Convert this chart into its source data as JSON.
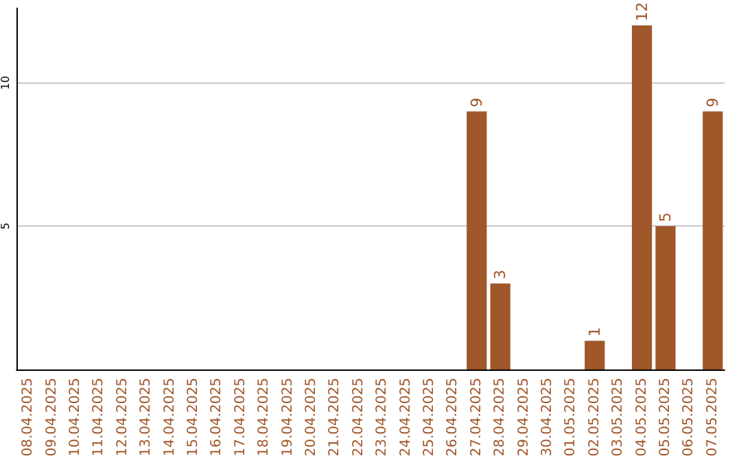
{
  "chart_data": {
    "type": "bar",
    "categories": [
      "08.04.2025",
      "09.04.2025",
      "10.04.2025",
      "11.04.2025",
      "12.04.2025",
      "13.04.2025",
      "14.04.2025",
      "15.04.2025",
      "16.04.2025",
      "17.04.2025",
      "18.04.2025",
      "19.04.2025",
      "20.04.2025",
      "21.04.2025",
      "22.04.2025",
      "23.04.2025",
      "24.04.2025",
      "25.04.2025",
      "26.04.2025",
      "27.04.2025",
      "28.04.2025",
      "29.04.2025",
      "30.04.2025",
      "01.05.2025",
      "02.05.2025",
      "03.05.2025",
      "04.05.2025",
      "05.05.2025",
      "06.05.2025",
      "07.05.2025"
    ],
    "values": [
      0,
      0,
      0,
      0,
      0,
      0,
      0,
      0,
      0,
      0,
      0,
      0,
      0,
      0,
      0,
      0,
      0,
      0,
      0,
      9,
      3,
      0,
      0,
      0,
      1,
      0,
      12,
      5,
      0,
      9
    ],
    "value_labels": [
      null,
      null,
      null,
      null,
      null,
      null,
      null,
      null,
      null,
      null,
      null,
      null,
      null,
      null,
      null,
      null,
      null,
      null,
      null,
      "9",
      "3",
      null,
      null,
      null,
      "1",
      null,
      "12",
      "5",
      null,
      "9"
    ],
    "color": "#a0572a",
    "ylim": [
      0,
      12.6
    ],
    "yticks": [
      5,
      10
    ],
    "grid": "y"
  }
}
